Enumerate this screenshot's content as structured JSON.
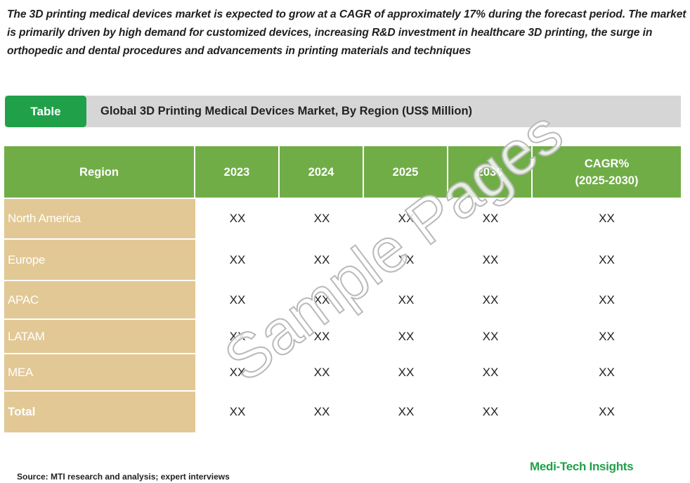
{
  "intro_text": "The 3D printing medical devices market is expected to grow at a CAGR of approximately 17% during the forecast period. The market is primarily driven by high demand for customized devices, increasing R&D investment in healthcare 3D printing, the surge in orthopedic and dental procedures and advancements in printing materials and techniques",
  "table_tag": "Table",
  "table_title": "Global 3D Printing Medical Devices Market, By Region (US$ Million)",
  "columns": [
    "Region",
    "2023",
    "2024",
    "2025",
    "2030",
    "CAGR%",
    "(2025-2030)"
  ],
  "rows": [
    {
      "region": "North America",
      "values": [
        "XX",
        "XX",
        "XX",
        "XX",
        "XX"
      ]
    },
    {
      "region": "Europe",
      "values": [
        "XX",
        "XX",
        "XX",
        "XX",
        "XX"
      ]
    },
    {
      "region": "APAC",
      "values": [
        "XX",
        "XX",
        "XX",
        "XX",
        "XX"
      ]
    },
    {
      "region": "LATAM",
      "values": [
        "XX",
        "XX",
        "XX",
        "XX",
        "XX"
      ]
    },
    {
      "region": "MEA",
      "values": [
        "XX",
        "XX",
        "XX",
        "XX",
        "XX"
      ]
    },
    {
      "region": "Total",
      "values": [
        "XX",
        "XX",
        "XX",
        "XX",
        "XX"
      ]
    }
  ],
  "watermark": "Sample Pages",
  "source": "Source: MTI research and analysis; expert interviews",
  "brand": "Medi-Tech Insights",
  "colors": {
    "header_green": "#70ad47",
    "tag_green": "#21a04a",
    "region_tan": "#e2c895",
    "bar_gray": "#d6d6d6"
  }
}
